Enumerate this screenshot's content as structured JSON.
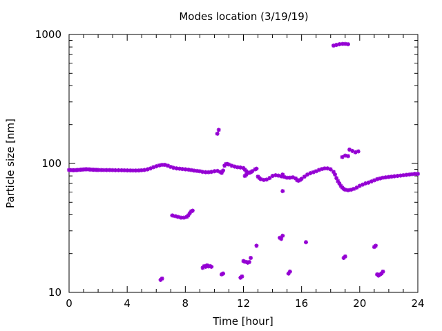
{
  "chart_data": {
    "type": "scatter",
    "title": "Modes location (3/19/19)",
    "xlabel": "Time [hour]",
    "ylabel": "Particle size [nm]",
    "xlim": [
      0,
      24
    ],
    "ylim": [
      10,
      1000
    ],
    "yscale": "log",
    "xticks": [
      0,
      4,
      8,
      12,
      16,
      20,
      24
    ],
    "yticks": [
      10,
      100,
      1000
    ],
    "xtick_labels": [
      "0",
      "4",
      "8",
      "12",
      "16",
      "20",
      "24"
    ],
    "ytick_labels": [
      "10",
      "100",
      "1000"
    ],
    "grid": false,
    "marker_color": "#9400d3",
    "series": [
      {
        "points": [
          [
            0.0,
            89
          ],
          [
            0.1,
            88.8
          ],
          [
            0.2,
            88.7
          ],
          [
            0.3,
            88.6
          ],
          [
            0.4,
            88.7
          ],
          [
            0.5,
            88.8
          ],
          [
            0.6,
            89
          ],
          [
            0.7,
            89.2
          ],
          [
            0.8,
            89.4
          ],
          [
            0.9,
            89.6
          ],
          [
            1.0,
            89.8
          ],
          [
            1.1,
            90
          ],
          [
            1.2,
            90.1
          ],
          [
            1.3,
            90
          ],
          [
            1.4,
            89.8
          ],
          [
            1.5,
            89.6
          ],
          [
            1.6,
            89.4
          ],
          [
            1.7,
            89.3
          ],
          [
            1.8,
            89.2
          ],
          [
            1.9,
            89.1
          ],
          [
            2.0,
            89
          ],
          [
            2.2,
            88.9
          ],
          [
            2.4,
            88.8
          ],
          [
            2.6,
            88.8
          ],
          [
            2.8,
            88.8
          ],
          [
            3.0,
            88.7
          ],
          [
            3.2,
            88.6
          ],
          [
            3.4,
            88.6
          ],
          [
            3.6,
            88.5
          ],
          [
            3.8,
            88.4
          ],
          [
            4.0,
            88.3
          ],
          [
            4.2,
            88.2
          ],
          [
            4.4,
            88.1
          ],
          [
            4.6,
            88.1
          ],
          [
            4.8,
            88.2
          ],
          [
            5.0,
            88.5
          ],
          [
            5.2,
            89
          ],
          [
            5.4,
            90
          ],
          [
            5.6,
            91.5
          ],
          [
            5.8,
            93.5
          ],
          [
            6.0,
            95
          ],
          [
            6.2,
            96.5
          ],
          [
            6.4,
            97.5
          ],
          [
            6.6,
            97.5
          ],
          [
            6.8,
            96
          ],
          [
            7.0,
            94
          ],
          [
            7.2,
            92.5
          ],
          [
            7.4,
            91.5
          ],
          [
            7.6,
            91
          ],
          [
            7.8,
            90.5
          ],
          [
            8.0,
            90
          ],
          [
            8.2,
            89.5
          ],
          [
            8.4,
            88.8
          ],
          [
            8.6,
            88
          ],
          [
            8.8,
            87.5
          ],
          [
            9.0,
            87
          ],
          [
            9.2,
            86
          ],
          [
            9.4,
            85.5
          ],
          [
            9.6,
            85.5
          ],
          [
            9.8,
            86
          ],
          [
            10.0,
            87
          ],
          [
            10.2,
            87.5
          ],
          [
            10.4,
            86
          ],
          [
            10.5,
            84.5
          ],
          [
            10.6,
            88
          ],
          [
            10.7,
            96
          ],
          [
            10.8,
            99
          ],
          [
            10.9,
            99
          ],
          [
            11.0,
            98
          ],
          [
            11.2,
            96
          ],
          [
            11.4,
            94.5
          ],
          [
            11.6,
            93.5
          ],
          [
            11.8,
            93
          ],
          [
            12.0,
            92
          ],
          [
            12.1,
            89.5
          ],
          [
            12.2,
            87
          ],
          [
            12.3,
            85
          ],
          [
            12.4,
            84.5
          ],
          [
            12.5,
            85.5
          ],
          [
            12.6,
            87
          ],
          [
            12.8,
            90
          ],
          [
            12.9,
            91
          ],
          [
            13.0,
            79
          ],
          [
            13.1,
            77
          ],
          [
            13.2,
            75.5
          ],
          [
            13.4,
            74.5
          ],
          [
            13.6,
            75
          ],
          [
            13.8,
            77
          ],
          [
            14.0,
            80
          ],
          [
            14.2,
            81
          ],
          [
            14.4,
            80.5
          ],
          [
            14.6,
            79.5
          ],
          [
            14.8,
            78.5
          ],
          [
            15.0,
            77.5
          ],
          [
            15.2,
            77.5
          ],
          [
            15.4,
            78
          ],
          [
            15.6,
            76.5
          ],
          [
            15.7,
            74
          ],
          [
            15.8,
            73.5
          ],
          [
            15.9,
            74.5
          ],
          [
            16.0,
            76
          ],
          [
            16.2,
            79
          ],
          [
            16.4,
            82
          ],
          [
            16.6,
            84
          ],
          [
            16.8,
            85.5
          ],
          [
            17.0,
            87
          ],
          [
            17.2,
            89
          ],
          [
            17.4,
            90.5
          ],
          [
            17.6,
            91.5
          ],
          [
            17.8,
            91.5
          ],
          [
            18.0,
            90
          ],
          [
            18.2,
            86
          ],
          [
            18.3,
            82
          ],
          [
            18.4,
            77
          ],
          [
            18.5,
            73
          ],
          [
            18.6,
            70
          ],
          [
            18.7,
            67
          ],
          [
            18.8,
            65
          ],
          [
            18.9,
            63.5
          ],
          [
            19.0,
            62.5
          ],
          [
            19.2,
            62
          ],
          [
            19.4,
            62.5
          ],
          [
            19.6,
            63.5
          ],
          [
            19.8,
            65
          ],
          [
            20.0,
            67
          ],
          [
            20.2,
            68.5
          ],
          [
            20.4,
            70
          ],
          [
            20.6,
            71
          ],
          [
            20.8,
            72.5
          ],
          [
            21.0,
            74
          ],
          [
            21.2,
            75.5
          ],
          [
            21.4,
            76.5
          ],
          [
            21.6,
            77.5
          ],
          [
            21.8,
            78
          ],
          [
            22.0,
            78.5
          ],
          [
            22.2,
            79
          ],
          [
            22.4,
            79.5
          ],
          [
            22.6,
            80
          ],
          [
            22.8,
            80.5
          ],
          [
            23.0,
            81
          ],
          [
            23.2,
            81.5
          ],
          [
            23.4,
            82
          ],
          [
            23.6,
            82.5
          ],
          [
            23.8,
            83
          ],
          [
            24.0,
            83
          ],
          [
            7.1,
            39.5
          ],
          [
            7.3,
            39
          ],
          [
            7.5,
            38.5
          ],
          [
            7.7,
            38
          ],
          [
            7.9,
            38
          ],
          [
            8.1,
            38.5
          ],
          [
            8.2,
            39.5
          ],
          [
            8.3,
            41
          ],
          [
            8.4,
            42.5
          ],
          [
            8.5,
            43
          ],
          [
            6.3,
            12.5
          ],
          [
            6.4,
            12.8
          ],
          [
            9.2,
            15.5
          ],
          [
            9.3,
            16
          ],
          [
            9.4,
            15.8
          ],
          [
            9.5,
            16.2
          ],
          [
            9.6,
            15.9
          ],
          [
            9.7,
            16
          ],
          [
            9.8,
            15.8
          ],
          [
            10.2,
            170
          ],
          [
            10.3,
            182
          ],
          [
            10.5,
            13.8
          ],
          [
            10.6,
            14
          ],
          [
            11.8,
            13
          ],
          [
            11.9,
            13.3
          ],
          [
            12.0,
            17.5
          ],
          [
            12.1,
            17.3
          ],
          [
            12.2,
            17.2
          ],
          [
            12.3,
            17
          ],
          [
            12.4,
            17.2
          ],
          [
            12.5,
            18.5
          ],
          [
            12.9,
            23
          ],
          [
            12.1,
            80
          ],
          [
            12.2,
            82
          ],
          [
            14.5,
            26.5
          ],
          [
            14.6,
            26
          ],
          [
            14.7,
            27.5
          ],
          [
            14.7,
            61
          ],
          [
            14.7,
            82
          ],
          [
            15.1,
            14
          ],
          [
            15.2,
            14.5
          ],
          [
            16.3,
            24.5
          ],
          [
            18.2,
            820
          ],
          [
            18.4,
            830
          ],
          [
            18.6,
            840
          ],
          [
            18.8,
            845
          ],
          [
            19.0,
            845
          ],
          [
            19.2,
            840
          ],
          [
            18.8,
            112
          ],
          [
            19.0,
            115
          ],
          [
            19.2,
            114
          ],
          [
            19.3,
            128
          ],
          [
            19.5,
            125
          ],
          [
            19.7,
            122
          ],
          [
            19.9,
            124
          ],
          [
            18.9,
            18.5
          ],
          [
            19.0,
            19
          ],
          [
            21.0,
            22.5
          ],
          [
            21.1,
            23
          ],
          [
            21.2,
            13.8
          ],
          [
            21.3,
            13.5
          ],
          [
            21.4,
            13.8
          ],
          [
            21.5,
            14
          ],
          [
            21.6,
            14.5
          ]
        ]
      }
    ]
  }
}
